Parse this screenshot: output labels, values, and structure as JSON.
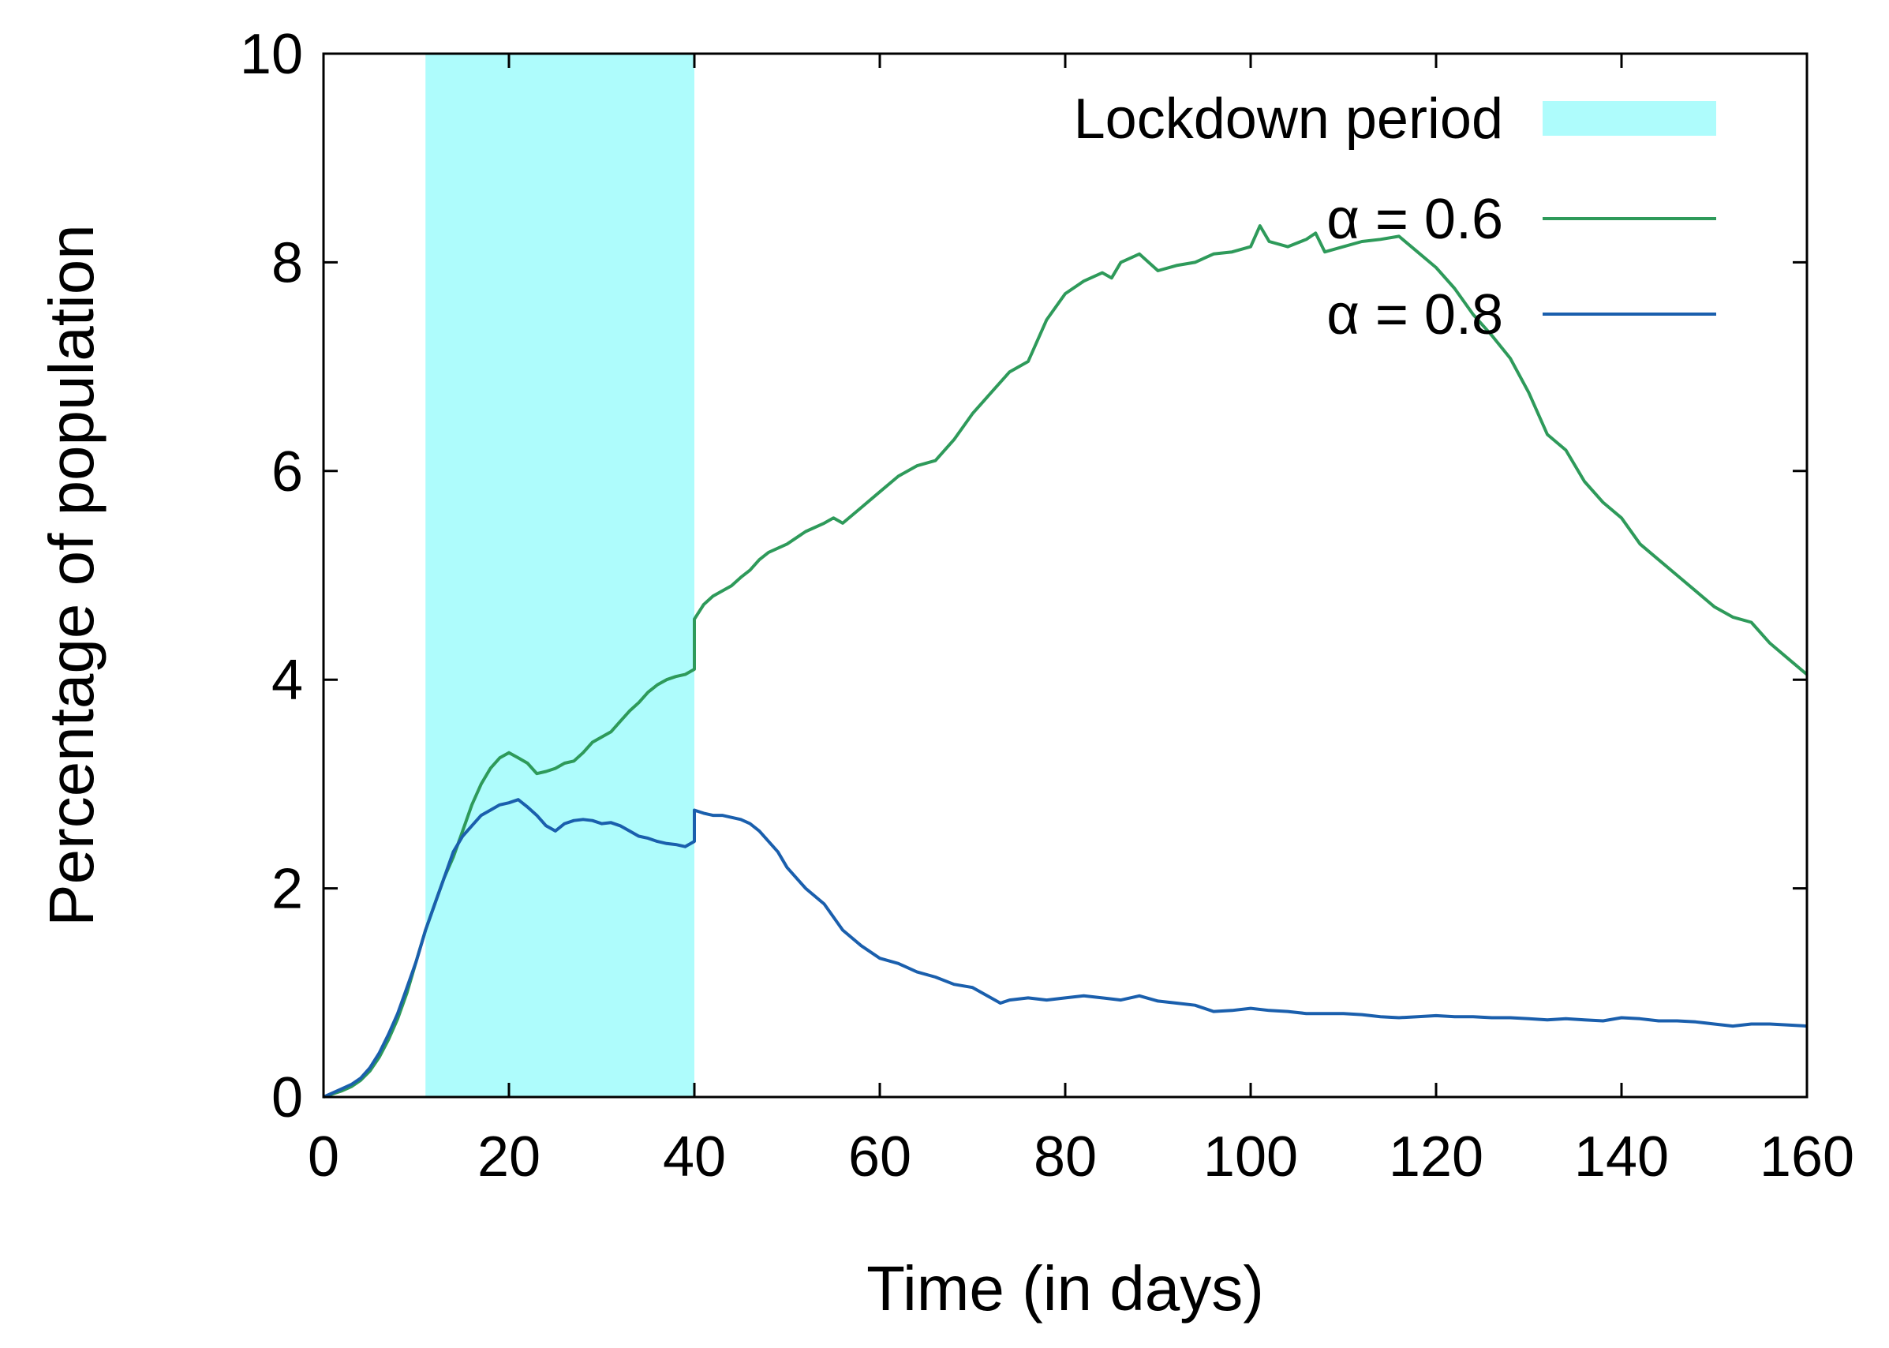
{
  "chart_data": {
    "type": "line",
    "xlabel": "Time (in days)",
    "ylabel": "Percentage of population",
    "xlim": [
      0,
      160
    ],
    "ylim": [
      0,
      10
    ],
    "x_ticks": [
      0,
      20,
      40,
      60,
      80,
      100,
      120,
      140,
      160
    ],
    "y_ticks": [
      0,
      2,
      4,
      6,
      8,
      10
    ],
    "grid": false,
    "legend_position": "top-right",
    "shaded_region": {
      "label": "Lockdown period",
      "x_start": 11,
      "x_end": 40,
      "color": "#aefcfc"
    },
    "series": [
      {
        "name": "α = 0.6",
        "color": "#2e9a5a",
        "x": [
          0,
          1,
          2,
          3,
          4,
          5,
          6,
          7,
          8,
          9,
          10,
          11,
          12,
          13,
          14,
          15,
          16,
          17,
          18,
          19,
          20,
          21,
          22,
          23,
          24,
          25,
          26,
          27,
          28,
          29,
          30,
          31,
          32,
          33,
          34,
          35,
          36,
          37,
          38,
          39,
          40,
          40,
          41,
          42,
          43,
          44,
          45,
          46,
          47,
          48,
          50,
          52,
          54,
          55,
          56,
          58,
          60,
          62,
          64,
          66,
          68,
          70,
          72,
          74,
          76,
          78,
          80,
          82,
          84,
          85,
          86,
          88,
          90,
          92,
          94,
          96,
          98,
          100,
          101,
          102,
          104,
          106,
          107,
          108,
          110,
          112,
          114,
          116,
          118,
          120,
          122,
          124,
          126,
          128,
          130,
          132,
          134,
          136,
          138,
          140,
          142,
          144,
          146,
          148,
          150,
          152,
          154,
          156,
          158,
          160
        ],
        "y": [
          0.0,
          0.03,
          0.06,
          0.1,
          0.16,
          0.25,
          0.38,
          0.55,
          0.75,
          1.0,
          1.3,
          1.6,
          1.85,
          2.1,
          2.3,
          2.55,
          2.8,
          3.0,
          3.15,
          3.25,
          3.3,
          3.25,
          3.2,
          3.1,
          3.12,
          3.15,
          3.2,
          3.22,
          3.3,
          3.4,
          3.45,
          3.5,
          3.6,
          3.7,
          3.78,
          3.88,
          3.95,
          4.0,
          4.03,
          4.05,
          4.1,
          4.58,
          4.72,
          4.8,
          4.85,
          4.9,
          4.98,
          5.05,
          5.15,
          5.22,
          5.3,
          5.42,
          5.5,
          5.55,
          5.5,
          5.65,
          5.8,
          5.95,
          6.05,
          6.1,
          6.3,
          6.55,
          6.75,
          6.95,
          7.05,
          7.45,
          7.7,
          7.82,
          7.9,
          7.85,
          8.0,
          8.08,
          7.92,
          7.97,
          8.0,
          8.08,
          8.1,
          8.15,
          8.35,
          8.2,
          8.15,
          8.22,
          8.28,
          8.1,
          8.15,
          8.2,
          8.22,
          8.25,
          8.1,
          7.95,
          7.75,
          7.5,
          7.3,
          7.08,
          6.75,
          6.35,
          6.2,
          5.9,
          5.7,
          5.55,
          5.3,
          5.15,
          5.0,
          4.85,
          4.7,
          4.6,
          4.55,
          4.35,
          4.2,
          4.05
        ]
      },
      {
        "name": "α = 0.8",
        "color": "#1a5fad",
        "x": [
          0,
          1,
          2,
          3,
          4,
          5,
          6,
          7,
          8,
          9,
          10,
          11,
          12,
          13,
          14,
          15,
          16,
          17,
          18,
          19,
          20,
          21,
          22,
          23,
          24,
          25,
          26,
          27,
          28,
          29,
          30,
          31,
          32,
          33,
          34,
          35,
          36,
          37,
          38,
          39,
          40,
          40,
          41,
          42,
          43,
          44,
          45,
          46,
          47,
          48,
          49,
          50,
          52,
          54,
          56,
          58,
          60,
          62,
          64,
          66,
          68,
          70,
          72,
          73,
          74,
          76,
          78,
          80,
          82,
          84,
          86,
          88,
          90,
          92,
          94,
          96,
          98,
          100,
          102,
          104,
          106,
          108,
          110,
          112,
          114,
          116,
          118,
          120,
          122,
          124,
          126,
          128,
          130,
          132,
          134,
          136,
          138,
          140,
          142,
          144,
          146,
          148,
          150,
          152,
          154,
          156,
          158,
          160
        ],
        "y": [
          0.0,
          0.04,
          0.08,
          0.12,
          0.18,
          0.28,
          0.42,
          0.6,
          0.8,
          1.05,
          1.3,
          1.6,
          1.85,
          2.1,
          2.35,
          2.5,
          2.6,
          2.7,
          2.75,
          2.8,
          2.82,
          2.85,
          2.78,
          2.7,
          2.6,
          2.55,
          2.62,
          2.65,
          2.66,
          2.65,
          2.62,
          2.63,
          2.6,
          2.55,
          2.5,
          2.48,
          2.45,
          2.43,
          2.42,
          2.4,
          2.45,
          2.75,
          2.72,
          2.7,
          2.7,
          2.68,
          2.66,
          2.62,
          2.55,
          2.45,
          2.35,
          2.2,
          2.0,
          1.85,
          1.6,
          1.45,
          1.33,
          1.28,
          1.2,
          1.15,
          1.08,
          1.05,
          0.95,
          0.9,
          0.93,
          0.95,
          0.93,
          0.95,
          0.97,
          0.95,
          0.93,
          0.97,
          0.92,
          0.9,
          0.88,
          0.82,
          0.83,
          0.85,
          0.83,
          0.82,
          0.8,
          0.8,
          0.8,
          0.79,
          0.77,
          0.76,
          0.77,
          0.78,
          0.77,
          0.77,
          0.76,
          0.76,
          0.75,
          0.74,
          0.75,
          0.74,
          0.73,
          0.76,
          0.75,
          0.73,
          0.73,
          0.72,
          0.7,
          0.68,
          0.7,
          0.7,
          0.69,
          0.68
        ]
      }
    ]
  }
}
